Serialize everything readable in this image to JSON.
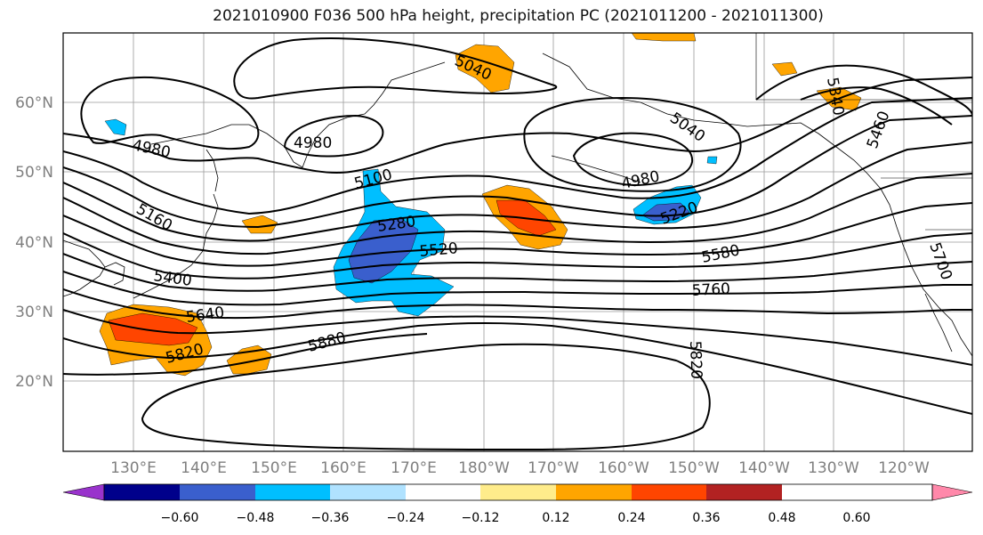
{
  "title": "2021010900 F036 500 hPa height, precipitation PC (2021011200 - 2021011300)",
  "lat_labels": [
    "60°N",
    "50°N",
    "40°N",
    "30°N",
    "20°N"
  ],
  "lon_labels": [
    "130°E",
    "140°E",
    "150°E",
    "160°E",
    "170°E",
    "180°W",
    "170°W",
    "160°W",
    "150°W",
    "140°W",
    "130°W",
    "120°W"
  ],
  "contour_labels": [
    "4980",
    "4980",
    "4980",
    "5040",
    "5040",
    "5100",
    "5160",
    "5220",
    "5280",
    "5340",
    "5400",
    "5460",
    "5520",
    "5580",
    "5640",
    "5700",
    "5760",
    "5820",
    "5820",
    "5880"
  ],
  "colorbar": {
    "ticks": [
      "−0.60",
      "−0.48",
      "−0.36",
      "−0.24",
      "−0.12",
      "0.12",
      "0.24",
      "0.36",
      "0.48",
      "0.60"
    ],
    "colors": [
      "#9933cc",
      "#00008b",
      "#3a5fcd",
      "#00bfff",
      "#b0e2ff",
      "#ffffff",
      "#ffec8b",
      "#ffa500",
      "#ff4500",
      "#b22222",
      "#ff88aa"
    ]
  },
  "colors": {
    "neg_light": "#b0e2ff",
    "neg_medium": "#00bfff",
    "neg_strong": "#3a5fcd",
    "pos_light": "#ffec8b",
    "pos_medium": "#ffa500",
    "pos_strong": "#ff4500"
  }
}
